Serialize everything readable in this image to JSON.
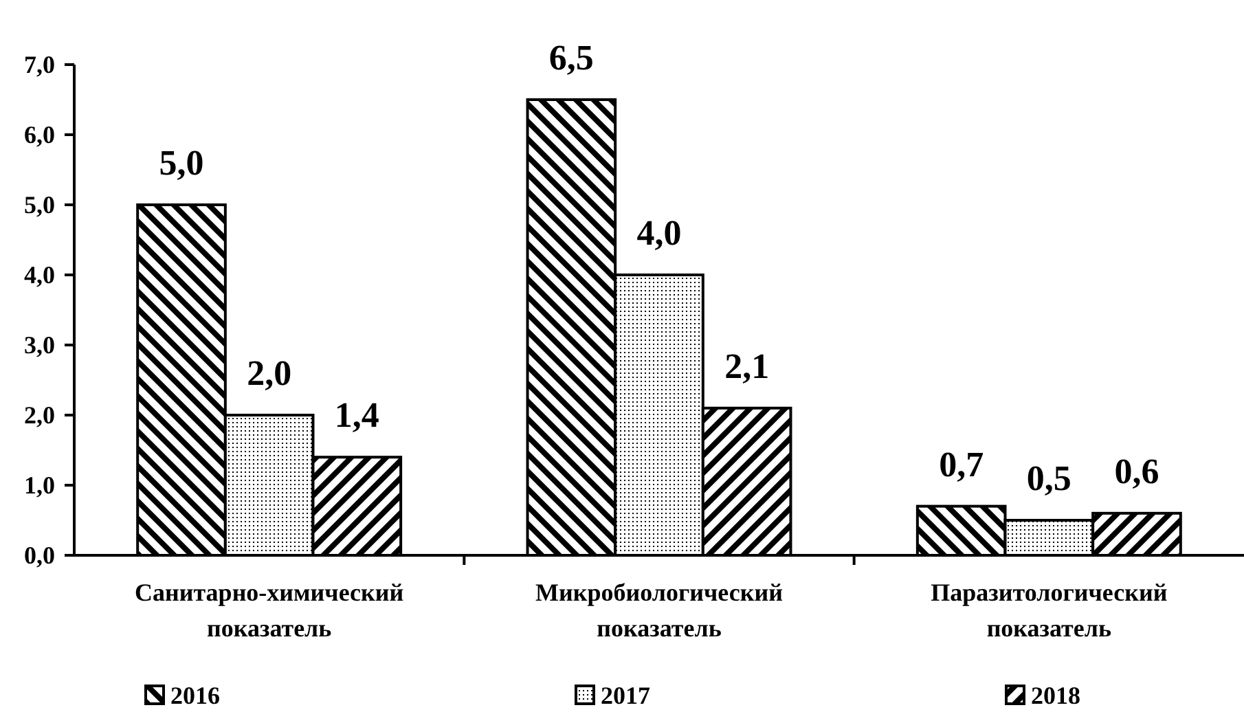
{
  "chart_data": {
    "type": "bar",
    "categories": [
      "Санитарно-химический показатель",
      "Микробиологический показатель",
      "Паразитологический показатель"
    ],
    "series": [
      {
        "name": "2016",
        "color": "#000000",
        "values": [
          5.0,
          6.5,
          0.7
        ],
        "value_labels": [
          "5,0",
          "6,5",
          "0,7"
        ]
      },
      {
        "name": "2017",
        "color": "#000000",
        "values": [
          2.0,
          4.0,
          0.5
        ],
        "value_labels": [
          "2,0",
          "4,0",
          "0,5"
        ]
      },
      {
        "name": "2018",
        "color": "#000000",
        "values": [
          1.4,
          2.1,
          0.6
        ],
        "value_labels": [
          "1,4",
          "2,1",
          "0,6"
        ]
      }
    ],
    "ylim": [
      0,
      7
    ],
    "yticks": [
      {
        "value": 0,
        "label": "0,0"
      },
      {
        "value": 1,
        "label": "1,0"
      },
      {
        "value": 2,
        "label": "2,0"
      },
      {
        "value": 3,
        "label": "3,0"
      },
      {
        "value": 4,
        "label": "4,0"
      },
      {
        "value": 5,
        "label": "5,0"
      },
      {
        "value": 6,
        "label": "6,0"
      },
      {
        "value": 7,
        "label": "7,0"
      }
    ],
    "legend": "bottom"
  }
}
